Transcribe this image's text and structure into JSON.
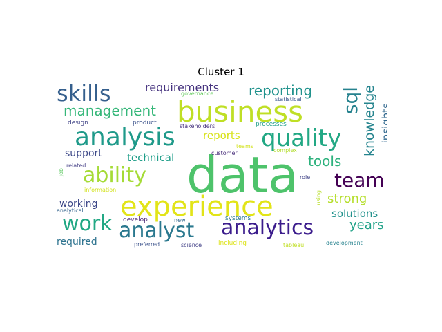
{
  "figure": {
    "title": "Cluster 1",
    "words": [
      {
        "text": "data",
        "color": "#4ec36b",
        "font_size": 72
      },
      {
        "text": "experience",
        "color": "#e2e418",
        "font_size": 40
      },
      {
        "text": "business",
        "color": "#bfdf25",
        "font_size": 42
      },
      {
        "text": "analysis",
        "color": "#1f9a8a",
        "font_size": 36
      },
      {
        "text": "skills",
        "color": "#355f8d",
        "font_size": 32
      },
      {
        "text": "quality",
        "color": "#22a884",
        "font_size": 34
      },
      {
        "text": "analyst",
        "color": "#2a788e",
        "font_size": 30
      },
      {
        "text": "analytics",
        "color": "#3b1c8c",
        "font_size": 30
      },
      {
        "text": "work",
        "color": "#22a884",
        "font_size": 30
      },
      {
        "text": "ability",
        "color": "#a5db36",
        "font_size": 30
      },
      {
        "text": "team",
        "color": "#440154",
        "font_size": 28
      },
      {
        "text": "sql",
        "color": "#26828e",
        "font_size": 28
      },
      {
        "text": "management",
        "color": "#35b779",
        "font_size": 20
      },
      {
        "text": "reporting",
        "color": "#20928c",
        "font_size": 20
      },
      {
        "text": "knowledge",
        "color": "#25848e",
        "font_size": 19
      },
      {
        "text": "requirements",
        "color": "#46337f",
        "font_size": 16
      },
      {
        "text": "tools",
        "color": "#2db27d",
        "font_size": 20
      },
      {
        "text": "insights",
        "color": "#31688e",
        "font_size": 15
      },
      {
        "text": "strong",
        "color": "#b5de2b",
        "font_size": 18
      },
      {
        "text": "years",
        "color": "#1fa187",
        "font_size": 18
      },
      {
        "text": "solutions",
        "color": "#21918c",
        "font_size": 15
      },
      {
        "text": "technical",
        "color": "#1f9e89",
        "font_size": 15
      },
      {
        "text": "reports",
        "color": "#d8e219",
        "font_size": 15
      },
      {
        "text": "support",
        "color": "#3e4a89",
        "font_size": 14
      },
      {
        "text": "working",
        "color": "#3e4989",
        "font_size": 14
      },
      {
        "text": "required",
        "color": "#2c728e",
        "font_size": 14
      },
      {
        "text": "design",
        "color": "#414487",
        "font_size": 9
      },
      {
        "text": "product",
        "color": "#3b528b",
        "font_size": 9
      },
      {
        "text": "stakeholders",
        "color": "#46327e",
        "font_size": 8
      },
      {
        "text": "processes",
        "color": "#1f9e89",
        "font_size": 9
      },
      {
        "text": "governance",
        "color": "#65cb5e",
        "font_size": 8
      },
      {
        "text": "statistical",
        "color": "#39558c",
        "font_size": 8
      },
      {
        "text": "customer",
        "color": "#472c7a",
        "font_size": 8
      },
      {
        "text": "teams",
        "color": "#d2e21b",
        "font_size": 8
      },
      {
        "text": "complex",
        "color": "#b2dd2d",
        "font_size": 8
      },
      {
        "text": "related",
        "color": "#433e85",
        "font_size": 8
      },
      {
        "text": "job",
        "color": "#5ec962",
        "font_size": 8
      },
      {
        "text": "information",
        "color": "#d2e21b",
        "font_size": 8
      },
      {
        "text": "role",
        "color": "#414487",
        "font_size": 8
      },
      {
        "text": "using",
        "color": "#b8de29",
        "font_size": 8
      },
      {
        "text": "analytical",
        "color": "#33638d",
        "font_size": 8
      },
      {
        "text": "develop",
        "color": "#482475",
        "font_size": 9
      },
      {
        "text": "new",
        "color": "#31688e",
        "font_size": 8
      },
      {
        "text": "systems",
        "color": "#2a788e",
        "font_size": 9
      },
      {
        "text": "preferred",
        "color": "#3b528b",
        "font_size": 8
      },
      {
        "text": "science",
        "color": "#424086",
        "font_size": 8
      },
      {
        "text": "including",
        "color": "#dde318",
        "font_size": 9
      },
      {
        "text": "tableau",
        "color": "#c0df25",
        "font_size": 8
      },
      {
        "text": "development",
        "color": "#26828e",
        "font_size": 8
      }
    ]
  }
}
